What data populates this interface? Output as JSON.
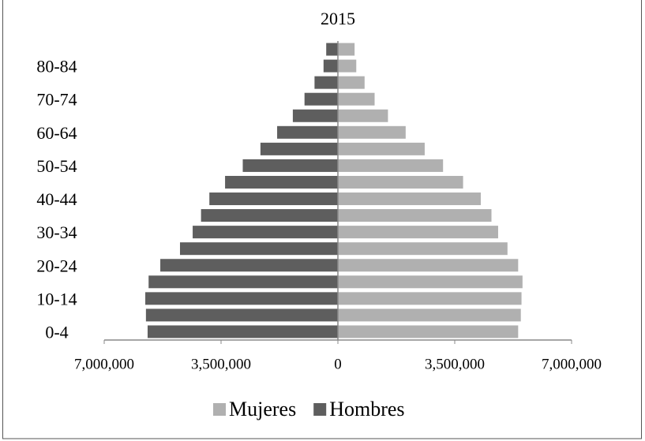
{
  "chart_data": {
    "type": "pyramid",
    "title": "2015",
    "categories": [
      "0-4",
      null,
      "10-14",
      null,
      "20-24",
      null,
      "30-34",
      null,
      "40-44",
      null,
      "50-54",
      null,
      "60-64",
      null,
      "70-74",
      null,
      "80-84",
      null
    ],
    "series": [
      {
        "name": "Mujeres",
        "color": "#b0b0b0",
        "values": [
          5400000,
          5480000,
          5500000,
          5530000,
          5400000,
          5080000,
          4800000,
          4600000,
          4280000,
          3750000,
          3150000,
          2600000,
          2030000,
          1500000,
          1100000,
          800000,
          550000,
          500000
        ]
      },
      {
        "name": "Hombres",
        "color": "#5e5e5e",
        "values": [
          -5700000,
          -5750000,
          -5770000,
          -5670000,
          -5320000,
          -4730000,
          -4350000,
          -4100000,
          -3850000,
          -3380000,
          -2850000,
          -2320000,
          -1820000,
          -1350000,
          -1000000,
          -700000,
          -430000,
          -350000
        ]
      }
    ],
    "xlim": [
      -7000000,
      7000000
    ],
    "xticks": [
      {
        "value": -7000000,
        "label": "7,000,000",
        "color": "#ff0000"
      },
      {
        "value": -3500000,
        "label": "3,500,000",
        "color": "#ff0000"
      },
      0,
      {
        "value": 3500000,
        "label": "3,500,000",
        "color": "#000000"
      },
      {
        "value": 7000000,
        "label": "7,000,000",
        "color": "#000000"
      }
    ],
    "legend": "bottom"
  }
}
